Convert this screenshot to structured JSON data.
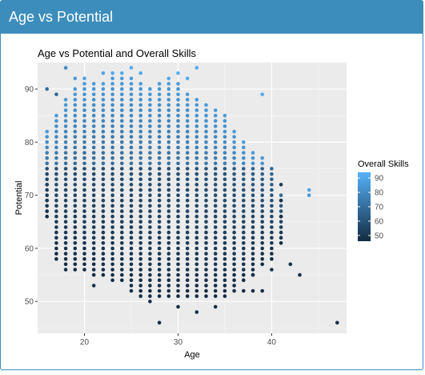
{
  "panel": {
    "title": "Age vs Potential"
  },
  "colors": {
    "header": "#3c8dbc",
    "panel_bg": "#ebebeb",
    "low": "#132b43",
    "high": "#56b1f7"
  },
  "chart_data": {
    "type": "scatter",
    "title": "Age vs Potential and Overall Skills",
    "xlabel": "Age",
    "ylabel": "Potential",
    "xlim": [
      15,
      48
    ],
    "ylim": [
      44,
      95
    ],
    "xticks": [
      20,
      30,
      40
    ],
    "yticks": [
      50,
      60,
      70,
      80,
      90
    ],
    "grid": true,
    "legend": {
      "title": "Overall Skills",
      "position": "right",
      "ticks": [
        50,
        60,
        70,
        80,
        90
      ],
      "range": [
        46,
        94
      ]
    },
    "columns": [
      {
        "x": 16,
        "ymin": 66,
        "ymax": 82
      },
      {
        "x": 17,
        "ymin": 58,
        "ymax": 85
      },
      {
        "x": 18,
        "ymin": 56,
        "ymax": 88
      },
      {
        "x": 19,
        "ymin": 56,
        "ymax": 90
      },
      {
        "x": 20,
        "ymin": 56,
        "ymax": 91
      },
      {
        "x": 21,
        "ymin": 55,
        "ymax": 91
      },
      {
        "x": 22,
        "ymin": 55,
        "ymax": 91
      },
      {
        "x": 23,
        "ymin": 54,
        "ymax": 92
      },
      {
        "x": 24,
        "ymin": 54,
        "ymax": 92
      },
      {
        "x": 25,
        "ymin": 53,
        "ymax": 92
      },
      {
        "x": 26,
        "ymin": 52,
        "ymax": 91
      },
      {
        "x": 27,
        "ymin": 51,
        "ymax": 90
      },
      {
        "x": 28,
        "ymin": 51,
        "ymax": 91
      },
      {
        "x": 29,
        "ymin": 51,
        "ymax": 91
      },
      {
        "x": 30,
        "ymin": 51,
        "ymax": 91
      },
      {
        "x": 31,
        "ymin": 51,
        "ymax": 89
      },
      {
        "x": 32,
        "ymin": 51,
        "ymax": 88
      },
      {
        "x": 33,
        "ymin": 51,
        "ymax": 87
      },
      {
        "x": 34,
        "ymin": 51,
        "ymax": 86
      },
      {
        "x": 35,
        "ymin": 52,
        "ymax": 85
      },
      {
        "x": 36,
        "ymin": 53,
        "ymax": 82
      },
      {
        "x": 37,
        "ymin": 54,
        "ymax": 80
      },
      {
        "x": 38,
        "ymin": 55,
        "ymax": 78
      },
      {
        "x": 39,
        "ymin": 57,
        "ymax": 77
      },
      {
        "x": 40,
        "ymin": 58,
        "ymax": 75
      },
      {
        "x": 41,
        "ymin": 61,
        "ymax": 70
      }
    ],
    "points": [
      {
        "x": 16,
        "y": 90,
        "c": 70
      },
      {
        "x": 16,
        "y": 72,
        "c": 55
      },
      {
        "x": 16,
        "y": 69,
        "c": 52
      },
      {
        "x": 17,
        "y": 89,
        "c": 68
      },
      {
        "x": 18,
        "y": 94,
        "c": 80
      },
      {
        "x": 19,
        "y": 92,
        "c": 86
      },
      {
        "x": 20,
        "y": 92,
        "c": 88
      },
      {
        "x": 21,
        "y": 53,
        "c": 48
      },
      {
        "x": 22,
        "y": 93,
        "c": 90
      },
      {
        "x": 23,
        "y": 93,
        "c": 92
      },
      {
        "x": 24,
        "y": 93,
        "c": 90
      },
      {
        "x": 25,
        "y": 94,
        "c": 92
      },
      {
        "x": 25,
        "y": 52,
        "c": 47
      },
      {
        "x": 26,
        "y": 93,
        "c": 90
      },
      {
        "x": 26,
        "y": 51,
        "c": 47
      },
      {
        "x": 27,
        "y": 50,
        "c": 47
      },
      {
        "x": 28,
        "y": 46,
        "c": 47
      },
      {
        "x": 29,
        "y": 92,
        "c": 92
      },
      {
        "x": 30,
        "y": 93,
        "c": 94
      },
      {
        "x": 30,
        "y": 49,
        "c": 47
      },
      {
        "x": 31,
        "y": 92,
        "c": 92
      },
      {
        "x": 32,
        "y": 94,
        "c": 92
      },
      {
        "x": 32,
        "y": 48,
        "c": 47
      },
      {
        "x": 34,
        "y": 49,
        "c": 47
      },
      {
        "x": 35,
        "y": 51,
        "c": 47
      },
      {
        "x": 36,
        "y": 52,
        "c": 47
      },
      {
        "x": 37,
        "y": 52,
        "c": 47
      },
      {
        "x": 38,
        "y": 55,
        "c": 48
      },
      {
        "x": 38,
        "y": 52,
        "c": 47
      },
      {
        "x": 39,
        "y": 89,
        "c": 92
      },
      {
        "x": 39,
        "y": 52,
        "c": 47
      },
      {
        "x": 40,
        "y": 56,
        "c": 48
      },
      {
        "x": 41,
        "y": 72,
        "c": 52
      },
      {
        "x": 41,
        "y": 69,
        "c": 50
      },
      {
        "x": 41,
        "y": 66,
        "c": 48
      },
      {
        "x": 42,
        "y": 57,
        "c": 48
      },
      {
        "x": 43,
        "y": 55,
        "c": 48
      },
      {
        "x": 44,
        "y": 71,
        "c": 90
      },
      {
        "x": 44,
        "y": 70,
        "c": 86
      },
      {
        "x": 47,
        "y": 46,
        "c": 47
      }
    ]
  }
}
